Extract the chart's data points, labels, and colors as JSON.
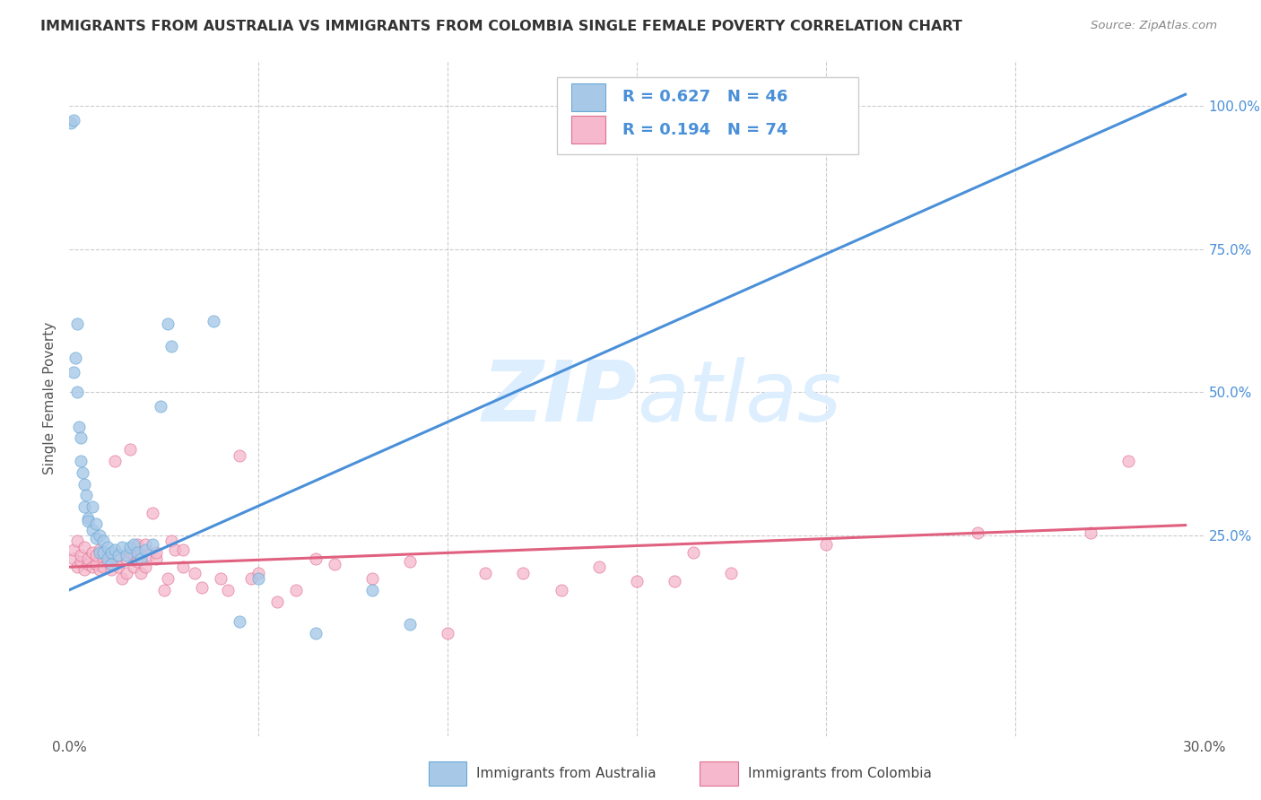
{
  "title": "IMMIGRANTS FROM AUSTRALIA VS IMMIGRANTS FROM COLOMBIA SINGLE FEMALE POVERTY CORRELATION CHART",
  "source": "Source: ZipAtlas.com",
  "ylabel": "Single Female Poverty",
  "right_yticks": [
    "100.0%",
    "75.0%",
    "50.0%",
    "25.0%"
  ],
  "right_ytick_vals": [
    1.0,
    0.75,
    0.5,
    0.25
  ],
  "xmin": 0.0,
  "xmax": 0.3,
  "ymin": -0.1,
  "ymax": 1.08,
  "australia_color": "#a8c8e8",
  "australia_edge_color": "#6aaad4",
  "australia_line_color": "#4a90d9",
  "colombia_color": "#f5b8cc",
  "colombia_edge_color": "#e07090",
  "colombia_line_color": "#e06080",
  "australia_R": 0.627,
  "australia_N": 46,
  "colombia_R": 0.194,
  "colombia_N": 74,
  "legend_label_australia": "Immigrants from Australia",
  "legend_label_colombia": "Immigrants from Colombia",
  "legend_text_color": "#4a90d9",
  "watermark_zip": "ZIP",
  "watermark_atlas": "atlas",
  "watermark_color": "#ddeeff",
  "australia_line_x": [
    0.0,
    0.295
  ],
  "australia_line_y": [
    0.155,
    1.02
  ],
  "colombia_line_x": [
    0.0,
    0.295
  ],
  "colombia_line_y": [
    0.195,
    0.268
  ],
  "grid_color": "#cccccc",
  "background_color": "#ffffff",
  "australia_points": [
    [
      0.0005,
      0.97
    ],
    [
      0.001,
      0.975
    ],
    [
      0.001,
      0.535
    ],
    [
      0.0015,
      0.56
    ],
    [
      0.002,
      0.62
    ],
    [
      0.002,
      0.5
    ],
    [
      0.0025,
      0.44
    ],
    [
      0.003,
      0.42
    ],
    [
      0.003,
      0.38
    ],
    [
      0.0035,
      0.36
    ],
    [
      0.004,
      0.34
    ],
    [
      0.004,
      0.3
    ],
    [
      0.0045,
      0.32
    ],
    [
      0.005,
      0.28
    ],
    [
      0.005,
      0.275
    ],
    [
      0.006,
      0.26
    ],
    [
      0.006,
      0.3
    ],
    [
      0.007,
      0.27
    ],
    [
      0.007,
      0.245
    ],
    [
      0.008,
      0.25
    ],
    [
      0.008,
      0.22
    ],
    [
      0.009,
      0.24
    ],
    [
      0.009,
      0.22
    ],
    [
      0.01,
      0.23
    ],
    [
      0.01,
      0.21
    ],
    [
      0.011,
      0.22
    ],
    [
      0.011,
      0.2
    ],
    [
      0.012,
      0.225
    ],
    [
      0.013,
      0.215
    ],
    [
      0.014,
      0.23
    ],
    [
      0.015,
      0.215
    ],
    [
      0.016,
      0.23
    ],
    [
      0.017,
      0.235
    ],
    [
      0.018,
      0.22
    ],
    [
      0.019,
      0.21
    ],
    [
      0.02,
      0.225
    ],
    [
      0.022,
      0.235
    ],
    [
      0.024,
      0.475
    ],
    [
      0.026,
      0.62
    ],
    [
      0.027,
      0.58
    ],
    [
      0.038,
      0.625
    ],
    [
      0.045,
      0.1
    ],
    [
      0.05,
      0.175
    ],
    [
      0.065,
      0.08
    ],
    [
      0.08,
      0.155
    ],
    [
      0.09,
      0.095
    ]
  ],
  "colombia_points": [
    [
      0.001,
      0.21
    ],
    [
      0.001,
      0.225
    ],
    [
      0.002,
      0.195
    ],
    [
      0.002,
      0.24
    ],
    [
      0.003,
      0.205
    ],
    [
      0.003,
      0.215
    ],
    [
      0.004,
      0.19
    ],
    [
      0.004,
      0.23
    ],
    [
      0.005,
      0.2
    ],
    [
      0.005,
      0.21
    ],
    [
      0.006,
      0.195
    ],
    [
      0.006,
      0.22
    ],
    [
      0.007,
      0.2
    ],
    [
      0.007,
      0.215
    ],
    [
      0.008,
      0.19
    ],
    [
      0.008,
      0.225
    ],
    [
      0.009,
      0.21
    ],
    [
      0.009,
      0.195
    ],
    [
      0.01,
      0.205
    ],
    [
      0.01,
      0.215
    ],
    [
      0.011,
      0.2
    ],
    [
      0.011,
      0.19
    ],
    [
      0.012,
      0.38
    ],
    [
      0.013,
      0.195
    ],
    [
      0.013,
      0.215
    ],
    [
      0.014,
      0.175
    ],
    [
      0.015,
      0.185
    ],
    [
      0.015,
      0.21
    ],
    [
      0.016,
      0.22
    ],
    [
      0.016,
      0.4
    ],
    [
      0.017,
      0.195
    ],
    [
      0.017,
      0.215
    ],
    [
      0.018,
      0.205
    ],
    [
      0.018,
      0.235
    ],
    [
      0.019,
      0.185
    ],
    [
      0.019,
      0.22
    ],
    [
      0.02,
      0.235
    ],
    [
      0.02,
      0.195
    ],
    [
      0.021,
      0.215
    ],
    [
      0.022,
      0.29
    ],
    [
      0.023,
      0.21
    ],
    [
      0.023,
      0.22
    ],
    [
      0.025,
      0.155
    ],
    [
      0.026,
      0.175
    ],
    [
      0.027,
      0.24
    ],
    [
      0.028,
      0.225
    ],
    [
      0.03,
      0.225
    ],
    [
      0.03,
      0.195
    ],
    [
      0.033,
      0.185
    ],
    [
      0.035,
      0.16
    ],
    [
      0.04,
      0.175
    ],
    [
      0.042,
      0.155
    ],
    [
      0.045,
      0.39
    ],
    [
      0.048,
      0.175
    ],
    [
      0.05,
      0.185
    ],
    [
      0.055,
      0.135
    ],
    [
      0.06,
      0.155
    ],
    [
      0.065,
      0.21
    ],
    [
      0.07,
      0.2
    ],
    [
      0.08,
      0.175
    ],
    [
      0.09,
      0.205
    ],
    [
      0.1,
      0.08
    ],
    [
      0.11,
      0.185
    ],
    [
      0.12,
      0.185
    ],
    [
      0.13,
      0.155
    ],
    [
      0.14,
      0.195
    ],
    [
      0.15,
      0.17
    ],
    [
      0.16,
      0.17
    ],
    [
      0.165,
      0.22
    ],
    [
      0.175,
      0.185
    ],
    [
      0.2,
      0.235
    ],
    [
      0.24,
      0.255
    ],
    [
      0.27,
      0.255
    ],
    [
      0.28,
      0.38
    ]
  ]
}
